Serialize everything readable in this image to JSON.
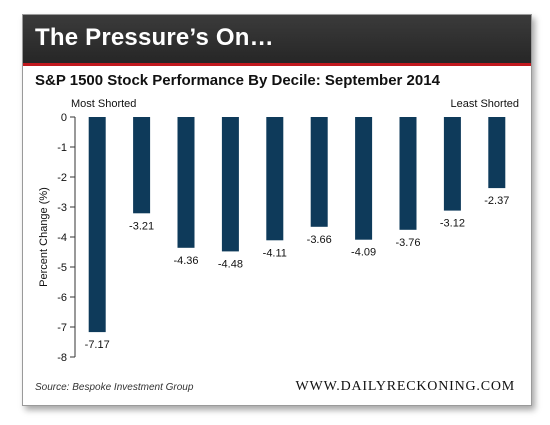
{
  "banner": {
    "title": "The Pressure’s On…"
  },
  "source": "Source: Bespoke Investment Group",
  "website": "WWW.DAILYRECKONING.COM",
  "colors": {
    "bar": "#0e3a5a",
    "banner": "#2e2e2e",
    "accent": "#c0191e"
  },
  "chart_data": {
    "type": "bar",
    "title": "S&P 1500 Stock Performance By Decile: September 2014",
    "ylabel": "Percent Change (%)",
    "xlabel": "",
    "annotations": {
      "left": "Most Shorted",
      "right": "Least Shorted"
    },
    "categories": [
      "",
      "",
      "",
      "",
      "",
      "",
      "",
      "",
      "",
      ""
    ],
    "values": [
      -7.17,
      -3.21,
      -4.36,
      -4.48,
      -4.11,
      -3.66,
      -4.09,
      -3.76,
      -3.12,
      -2.37
    ],
    "value_labels": [
      "-7.17",
      "-3.21",
      "-4.36",
      "-4.48",
      "-4.11",
      "-3.66",
      "-4.09",
      "-3.76",
      "-3.12",
      "-2.37"
    ],
    "yticks": [
      "0",
      "-1",
      "-2",
      "-3",
      "-4",
      "-5",
      "-6",
      "-7",
      "-8"
    ],
    "ylim": [
      -8,
      0
    ],
    "grid": false
  }
}
